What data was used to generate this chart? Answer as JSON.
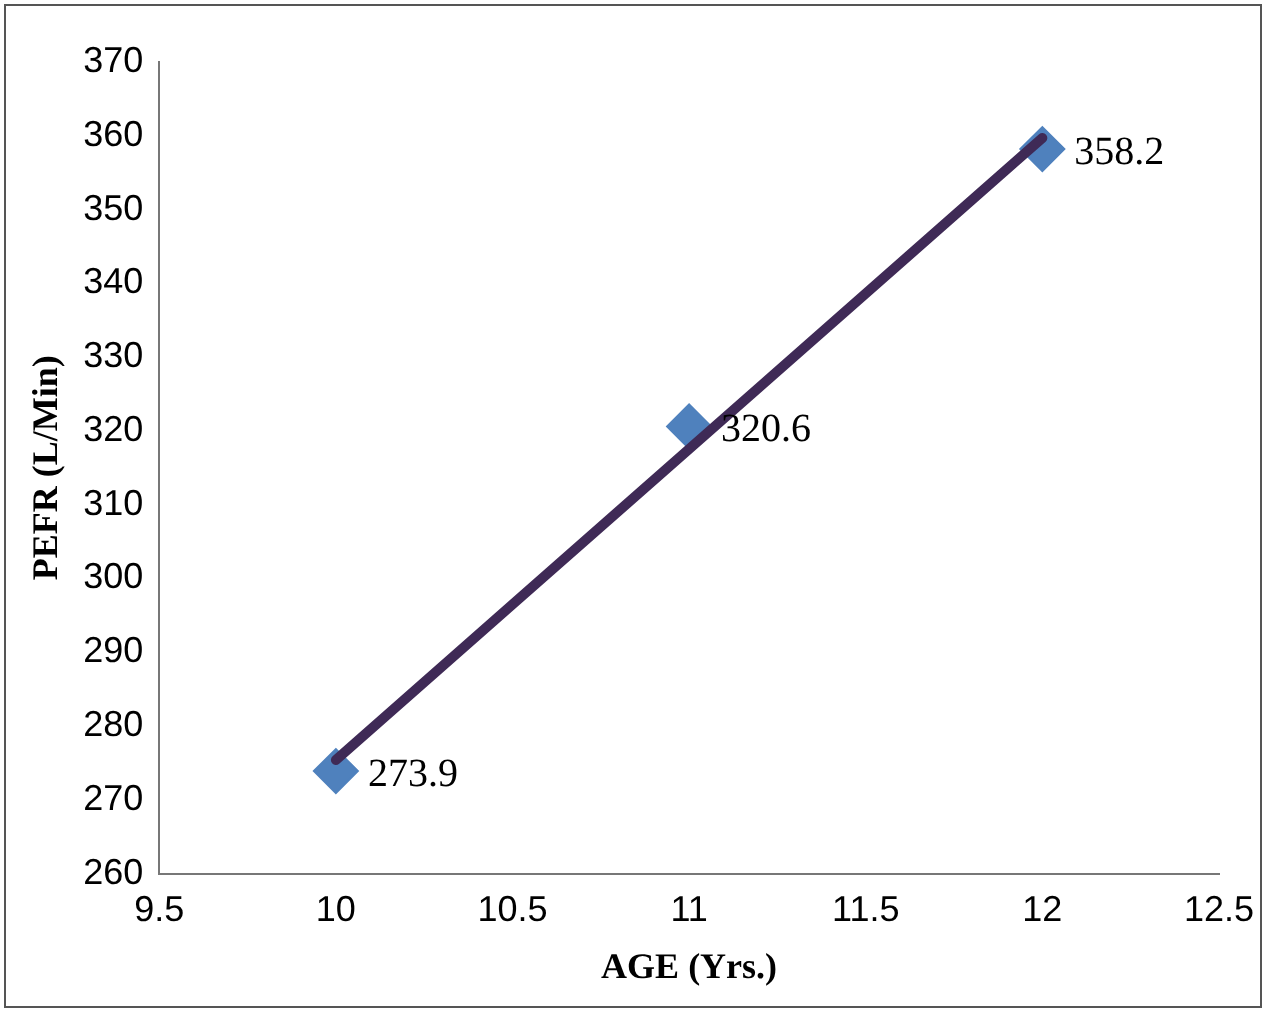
{
  "chart_data": {
    "type": "scatter",
    "xlabel": "AGE (Yrs.)",
    "ylabel": "PEFR (L/Min)",
    "series": [
      {
        "type": "scatter",
        "color": "#4f81bd",
        "x": [
          10,
          11,
          12
        ],
        "values": [
          273.9,
          320.6,
          358.2
        ],
        "value_labels": [
          "273.9",
          "320.6",
          "358.2"
        ],
        "marker": "diamond"
      },
      {
        "type": "line",
        "color": "#3f2a56",
        "x": [
          10,
          12
        ],
        "values": [
          275.4,
          359.7
        ],
        "marker": "none"
      }
    ],
    "xlim": [
      9.5,
      12.5
    ],
    "xticks": [
      9.5,
      10,
      10.5,
      11,
      11.5,
      12,
      12.5
    ],
    "ylim": [
      260,
      370
    ],
    "yticks": [
      260,
      270,
      280,
      290,
      300,
      310,
      320,
      330,
      340,
      350,
      360,
      370
    ],
    "grid": false,
    "legend": false
  }
}
